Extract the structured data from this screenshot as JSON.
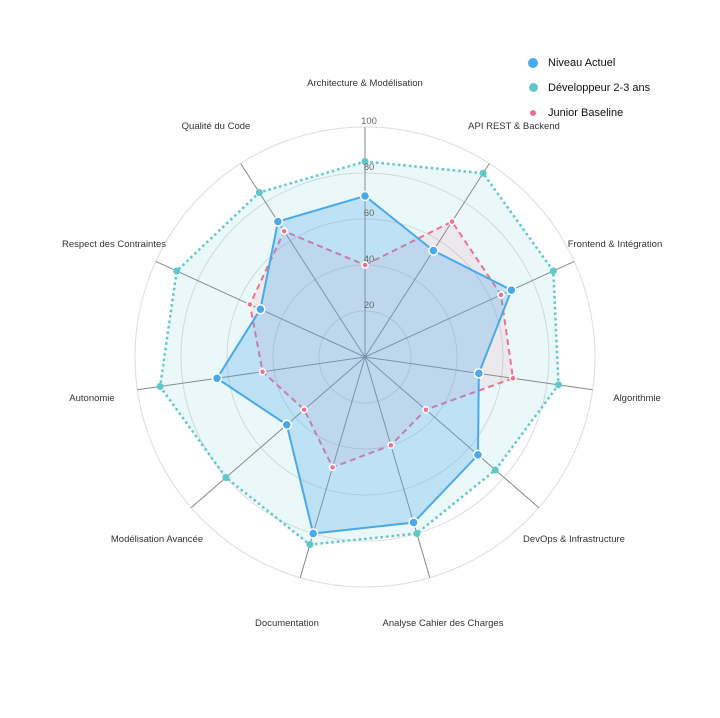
{
  "chart_data": {
    "type": "radar",
    "title": "",
    "categories": [
      "Architecture & Modélisation",
      "API REST & Backend",
      "Frontend & Intégration",
      "Algorithmie",
      "DevOps & Infrastructure",
      "Analyse Cahier des Charges",
      "Documentation",
      "Modélisation Avancée",
      "Autonomie",
      "Respect des Contraintes",
      "Qualité du Code"
    ],
    "series": [
      {
        "name": "Niveau Actuel",
        "color": "#4aa8ec",
        "style": "solid",
        "values": [
          70,
          55,
          70,
          50,
          65,
          75,
          80,
          45,
          65,
          50,
          70
        ]
      },
      {
        "name": "Développeur 2-3 ans",
        "color": "#5ec8cc",
        "style": "dotted",
        "values": [
          85,
          95,
          90,
          85,
          75,
          80,
          85,
          80,
          90,
          90,
          85
        ]
      },
      {
        "name": "Junior Baseline",
        "color": "#f0708f",
        "style": "dashed",
        "values": [
          40,
          70,
          65,
          65,
          35,
          40,
          50,
          35,
          45,
          55,
          65
        ]
      }
    ],
    "rlim": [
      0,
      100
    ],
    "ticks": [
      20,
      40,
      60,
      80,
      100
    ],
    "grid": true,
    "legend_position": "top-right"
  },
  "legend": {
    "items": [
      {
        "label": "Niveau Actuel",
        "color": "#4aa8ec",
        "size": 10
      },
      {
        "label": "Développeur 2-3 ans",
        "color": "#5ec8cc",
        "size": 9
      },
      {
        "label": "Junior Baseline",
        "color": "#f0708f",
        "size": 6
      }
    ]
  }
}
